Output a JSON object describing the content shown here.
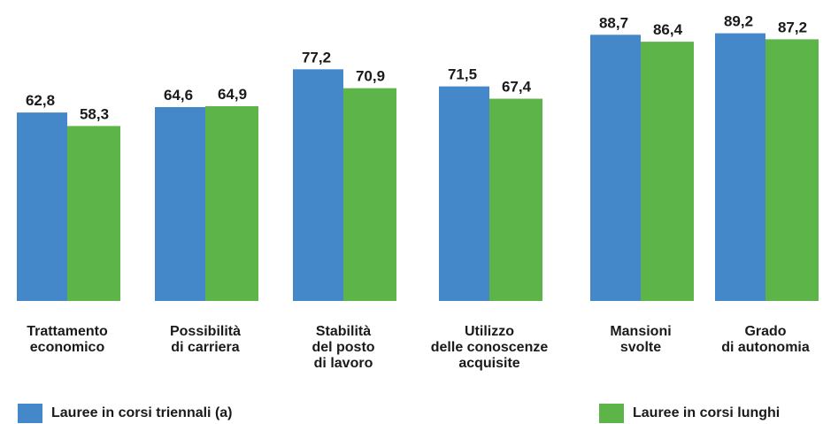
{
  "chart_data": {
    "type": "bar",
    "categories": [
      "Trattamento\neconomico",
      "Possibilità\ndi carriera",
      "Stabilità\ndel posto\ndi lavoro",
      "Utilizzo\ndelle conoscenze\nacquisite",
      "Mansioni\nsvolte",
      "Grado\ndi autonomia"
    ],
    "series": [
      {
        "name": "Lauree in corsi triennali (a)",
        "color": "#4488c9",
        "values": [
          62.8,
          64.6,
          77.2,
          71.5,
          88.7,
          89.2
        ],
        "value_labels": [
          "62,8",
          "64,6",
          "77,2",
          "71,5",
          "88,7",
          "89,2"
        ]
      },
      {
        "name": "Lauree in corsi lunghi",
        "color": "#5db549",
        "values": [
          58.3,
          64.9,
          70.9,
          67.4,
          86.4,
          87.2
        ],
        "value_labels": [
          "58,3",
          "64,9",
          "70,9",
          "67,4",
          "86,4",
          "87,2"
        ]
      }
    ],
    "ylim": [
      0,
      100
    ]
  }
}
